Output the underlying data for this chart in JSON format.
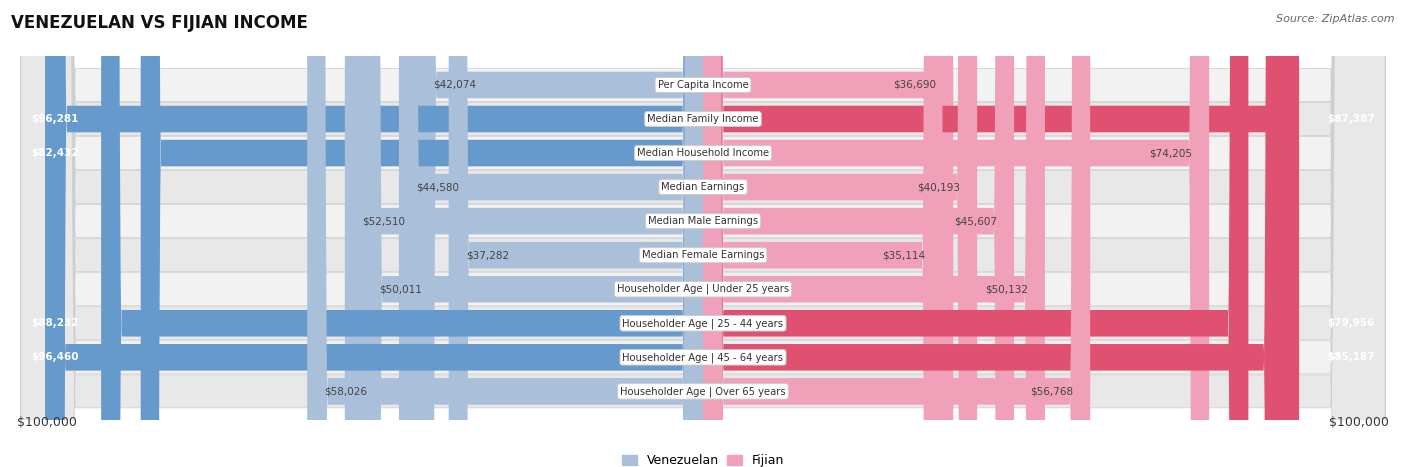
{
  "title": "VENEZUELAN VS FIJIAN INCOME",
  "source": "Source: ZipAtlas.com",
  "categories": [
    "Per Capita Income",
    "Median Family Income",
    "Median Household Income",
    "Median Earnings",
    "Median Male Earnings",
    "Median Female Earnings",
    "Householder Age | Under 25 years",
    "Householder Age | 25 - 44 years",
    "Householder Age | 45 - 64 years",
    "Householder Age | Over 65 years"
  ],
  "venezuelan_values": [
    42074,
    96281,
    82432,
    44580,
    52510,
    37282,
    50011,
    88232,
    96460,
    58026
  ],
  "fijian_values": [
    36690,
    87387,
    74205,
    40193,
    45607,
    35114,
    50132,
    79956,
    85187,
    56768
  ],
  "max_value": 100000,
  "venezuelan_color_full": "#6699CC",
  "venezuelan_color_light": "#AABFD9",
  "fijian_color_full": "#E05070",
  "fijian_color_light": "#F0A0B8",
  "venezuelan_label": "Venezuelan",
  "fijian_label": "Fijian",
  "axis_label_left": "$100,000",
  "axis_label_right": "$100,000",
  "row_bg_even": "#f2f2f2",
  "row_bg_odd": "#e8e8e8",
  "threshold_full": 75000
}
